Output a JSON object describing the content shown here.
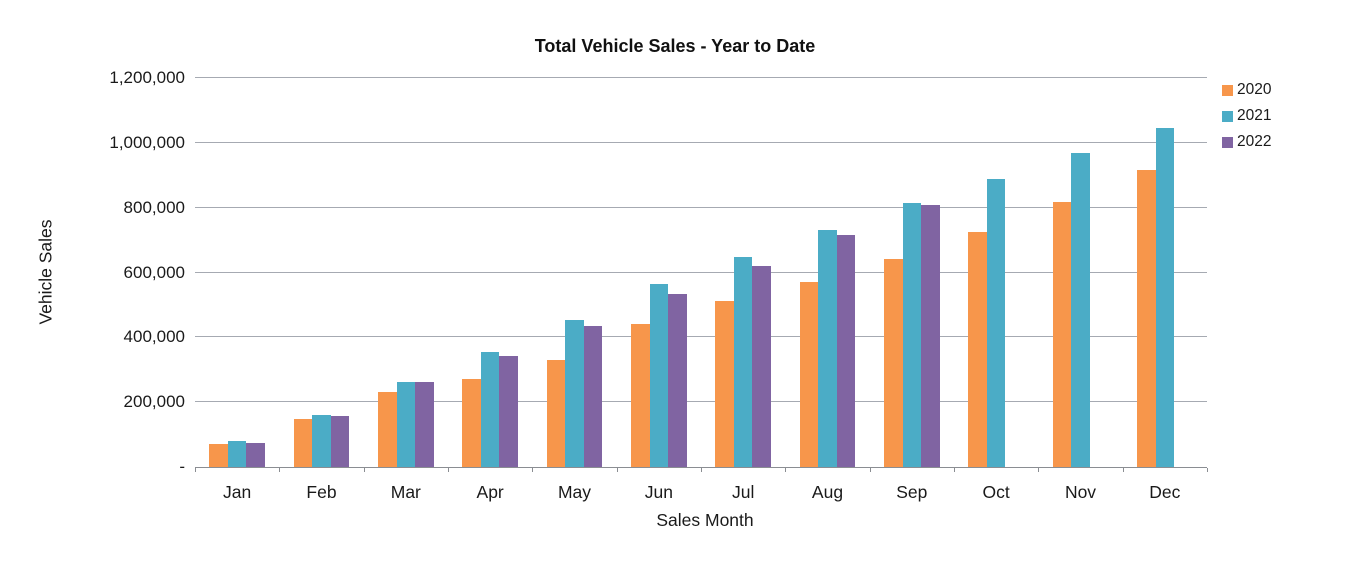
{
  "title": "Total Vehicle Sales - Year to Date",
  "axes": {
    "y_title": "Vehicle Sales",
    "x_title": "Sales Month"
  },
  "legend": {
    "items": [
      {
        "label": "2020",
        "color": "#F7964B"
      },
      {
        "label": "2021",
        "color": "#4BACC6"
      },
      {
        "label": "2022",
        "color": "#8064A2"
      }
    ]
  },
  "chart_data": {
    "type": "bar",
    "title": "Total Vehicle Sales - Year to Date",
    "xlabel": "Sales Month",
    "ylabel": "Vehicle Sales",
    "categories": [
      "Jan",
      "Feb",
      "Mar",
      "Apr",
      "May",
      "Jun",
      "Jul",
      "Aug",
      "Sep",
      "Oct",
      "Nov",
      "Dec"
    ],
    "series": [
      {
        "name": "2020",
        "color": "#F7964B",
        "values": [
          70000,
          148000,
          232000,
          270000,
          330000,
          440000,
          512000,
          572000,
          642000,
          725000,
          818000,
          915000
        ]
      },
      {
        "name": "2021",
        "color": "#4BACC6",
        "values": [
          80000,
          162000,
          262000,
          354000,
          455000,
          566000,
          648000,
          731000,
          815000,
          890000,
          968000,
          1046000
        ]
      },
      {
        "name": "2022",
        "color": "#8064A2",
        "values": [
          74000,
          157000,
          261000,
          342000,
          434000,
          535000,
          620000,
          717000,
          809000,
          null,
          null,
          null
        ]
      }
    ],
    "ylim": [
      0,
      1200000
    ],
    "ytick_step": 200000,
    "yticks": [
      {
        "v": 0,
        "label": "-"
      },
      {
        "v": 200000,
        "label": "200,000"
      },
      {
        "v": 400000,
        "label": "400,000"
      },
      {
        "v": 600000,
        "label": "600,000"
      },
      {
        "v": 800000,
        "label": "800,000"
      },
      {
        "v": 1000000,
        "label": "1,000,000"
      },
      {
        "v": 1200000,
        "label": "1,200,000"
      }
    ],
    "grid": true,
    "legend_position": "top-right"
  }
}
